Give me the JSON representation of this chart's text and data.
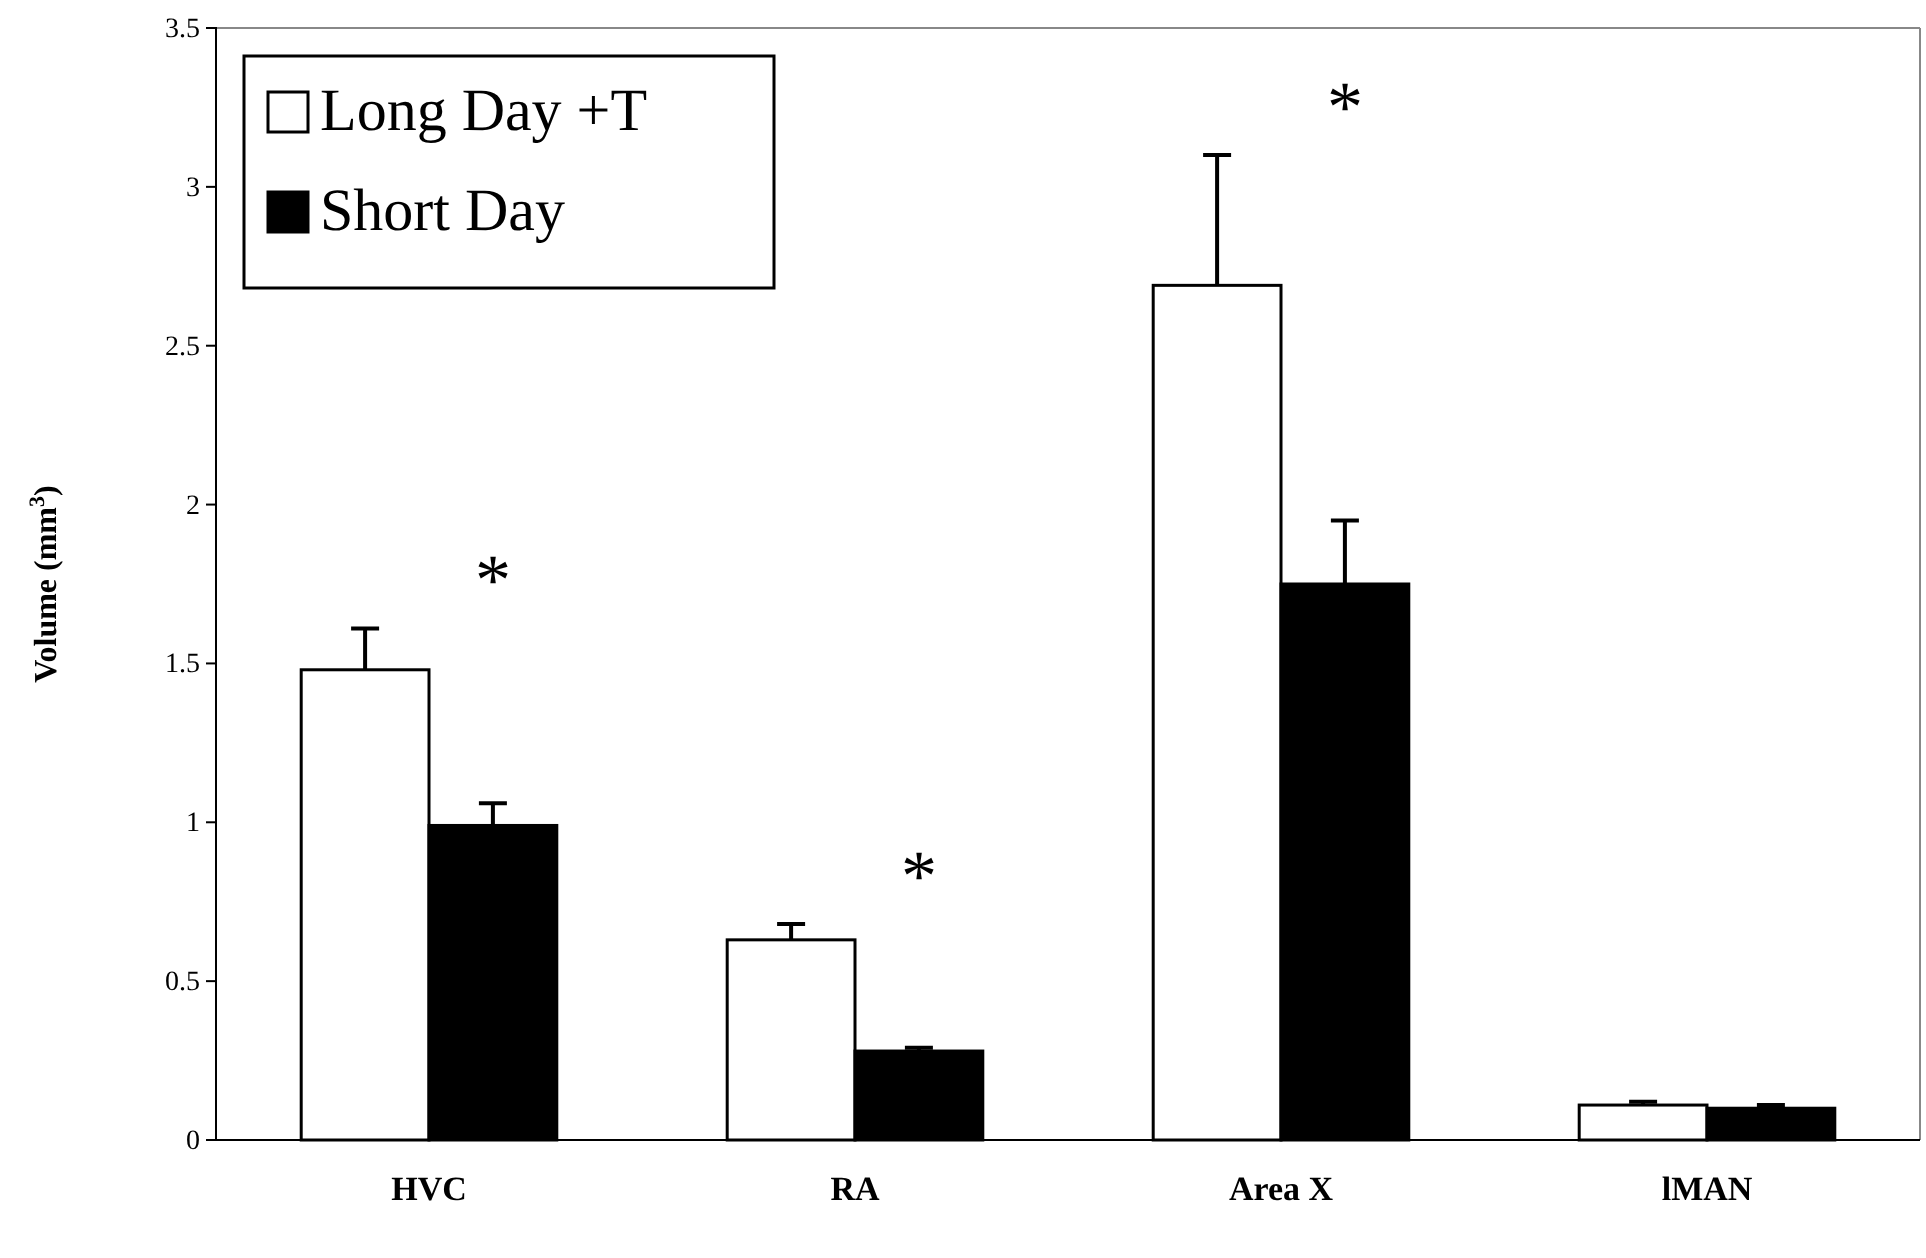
{
  "chart_data": {
    "type": "bar",
    "ylabel": "Volume (mm$^{3}$)",
    "categories": [
      "HVC",
      "RA",
      "Area X",
      "lMAN"
    ],
    "series": [
      {
        "name": "Long Day +T",
        "color": "#ffffff",
        "values": [
          1.48,
          0.63,
          2.69,
          0.11
        ],
        "errors": [
          0.13,
          0.05,
          0.41,
          0.01
        ]
      },
      {
        "name": "Short Day",
        "color": "#000000",
        "values": [
          0.99,
          0.28,
          1.75,
          0.1
        ],
        "errors": [
          0.07,
          0.01,
          0.2,
          0.01
        ]
      }
    ],
    "ylim": [
      0,
      3.5
    ],
    "yticks": [
      0,
      0.5,
      1,
      1.5,
      2,
      2.5,
      3,
      3.5
    ],
    "grid": false,
    "legend": "top left",
    "annotations": [
      "*",
      "*",
      "*"
    ]
  }
}
